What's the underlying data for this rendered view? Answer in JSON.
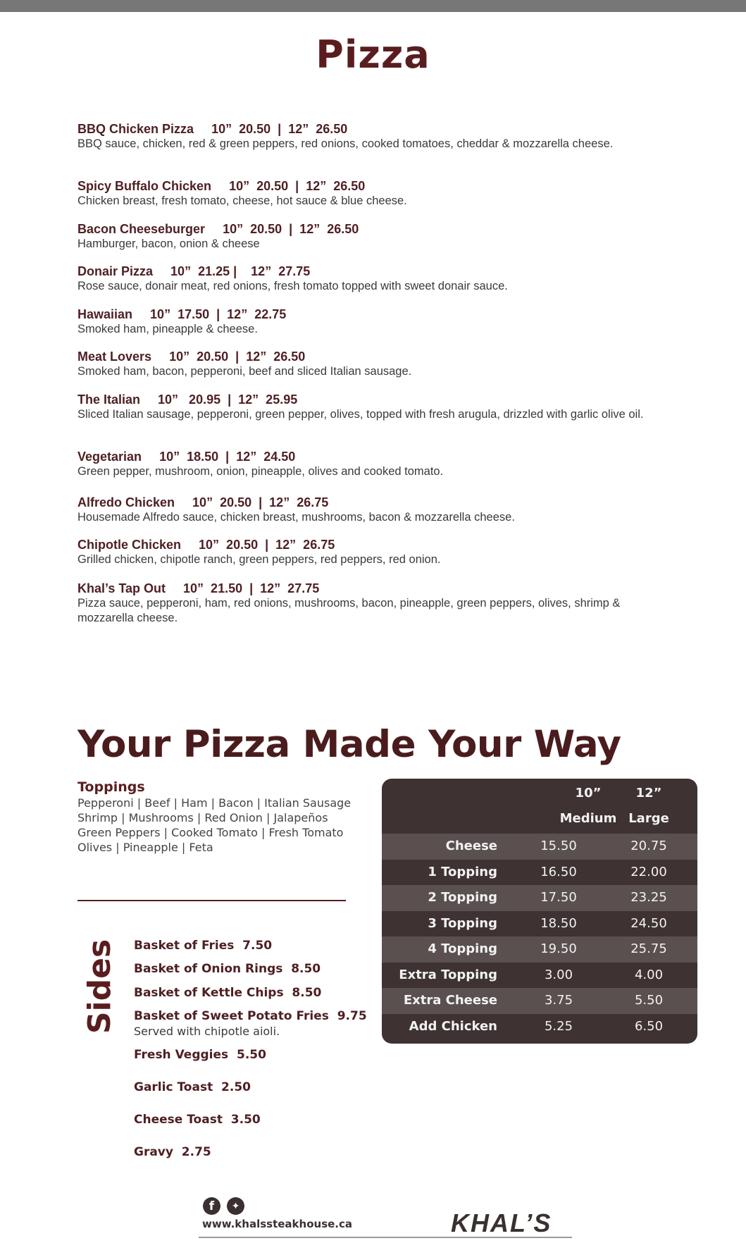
{
  "title": "Pizza",
  "pizzas": [
    {
      "name": "BBQ Chicken Pizza",
      "price10": "10”  20.50",
      "price12": "12”  26.50",
      "sep": "  |  ",
      "desc": "BBQ sauce, chicken, red & green peppers, red onions, cooked tomatoes, cheddar & mozzarella cheese."
    },
    {
      "name": "Spicy Buffalo Chicken",
      "price10": "10”  20.50",
      "price12": "12”  26.50",
      "sep": "  |  ",
      "desc": "Chicken breast, fresh tomato, cheese, hot sauce & blue cheese."
    },
    {
      "name": "Bacon Cheeseburger",
      "price10": "10”  20.50",
      "price12": "12”  26.50",
      "sep": "  |  ",
      "desc": "Hamburger, bacon, onion & cheese"
    },
    {
      "name": "Donair Pizza",
      "price10": "10”  21.25",
      "price12": "12”  27.75",
      "sep": " |    ",
      "desc": "Rose sauce, donair meat, red onions, fresh tomato topped with sweet donair sauce."
    },
    {
      "name": "Hawaiian",
      "price10": "10”  17.50",
      "price12": "12”  22.75",
      "sep": "  |  ",
      "desc": "Smoked ham, pineapple & cheese."
    },
    {
      "name": "Meat Lovers",
      "price10": "10”  20.50",
      "price12": "12”  26.50",
      "sep": "  |  ",
      "desc": "Smoked ham, bacon, pepperoni, beef and sliced Italian sausage."
    },
    {
      "name": "The Italian",
      "price10": "10”   20.95",
      "price12": "12”  25.95",
      "sep": "  |  ",
      "desc": "Sliced Italian sausage, pepperoni, green pepper, olives, topped with fresh arugula, drizzled with garlic olive oil."
    },
    {
      "name": "Vegetarian",
      "price10": "10”  18.50",
      "price12": "12”  24.50",
      "sep": "  |  ",
      "desc": "Green pepper, mushroom, onion, pineapple, olives and cooked tomato."
    },
    {
      "name": "Alfredo Chicken",
      "price10": "10”  20.50",
      "price12": "12”  26.75",
      "sep": "  |  ",
      "desc": "Housemade Alfredo sauce,  chicken breast, mushrooms, bacon & mozzarella cheese."
    },
    {
      "name": "Chipotle Chicken",
      "price10": "10”  20.50",
      "price12": "12”  26.75",
      "sep": "  |  ",
      "desc": "Grilled chicken, chipotle ranch, green peppers, red peppers, red onion."
    },
    {
      "name": "Khal’s Tap Out",
      "price10": "10”  21.50",
      "price12": "12”  27.75",
      "sep": "  |  ",
      "desc": "Pizza sauce, pepperoni, ham, red onions, mushrooms, bacon, pineapple, green peppers, olives, shrimp & mozzarella cheese."
    }
  ],
  "build": {
    "title": "Your Pizza Made Your Way",
    "toppings_heading": "Toppings",
    "toppings_lines": [
      "Pepperoni | Beef | Ham | Bacon | Italian Sausage",
      "Shrimp | Mushrooms | Red Onion | Jalapeños",
      "Green Peppers | Cooked Tomato | Fresh Tomato",
      "Olives | Pineapple | Feta"
    ],
    "table": {
      "col1_size": "10”",
      "col1_name": "Medium",
      "col2_size": "12”",
      "col2_name": "Large",
      "rows": [
        {
          "label": "Cheese",
          "medium": "15.50",
          "large": "20.75"
        },
        {
          "label": "1 Topping",
          "medium": "16.50",
          "large": "22.00"
        },
        {
          "label": "2 Topping",
          "medium": "17.50",
          "large": "23.25"
        },
        {
          "label": "3 Topping",
          "medium": "18.50",
          "large": "24.50"
        },
        {
          "label": "4 Topping",
          "medium": "19.50",
          "large": "25.75"
        },
        {
          "label": "Extra Topping",
          "medium": "3.00",
          "large": "4.00"
        },
        {
          "label": "Extra Cheese",
          "medium": "3.75",
          "large": "5.50"
        },
        {
          "label": "Add Chicken",
          "medium": "5.25",
          "large": "6.50"
        }
      ]
    }
  },
  "sides": {
    "heading": "Sides",
    "items": [
      {
        "label": "Basket of Fries  7.50"
      },
      {
        "label": "Basket of Onion Rings  8.50"
      },
      {
        "label": "Basket of Kettle Chips  8.50"
      },
      {
        "label": "Basket of Sweet Potato Fries  9.75",
        "desc": "Served with chipotle aioli."
      },
      {
        "label": "Fresh Veggies  5.50"
      },
      {
        "label": "Garlic Toast  2.50"
      },
      {
        "label": "Cheese Toast  3.50"
      },
      {
        "label": "Gravy  2.75"
      }
    ]
  },
  "footer": {
    "icons": [
      "facebook-icon",
      "twitter-icon"
    ],
    "url": "www.khalssteakhouse.ca",
    "logo": "KHAL’S"
  },
  "colors": {
    "accent": "#5a1d1f",
    "table_bg": "#3e3232",
    "table_alt": "#5b5050"
  }
}
